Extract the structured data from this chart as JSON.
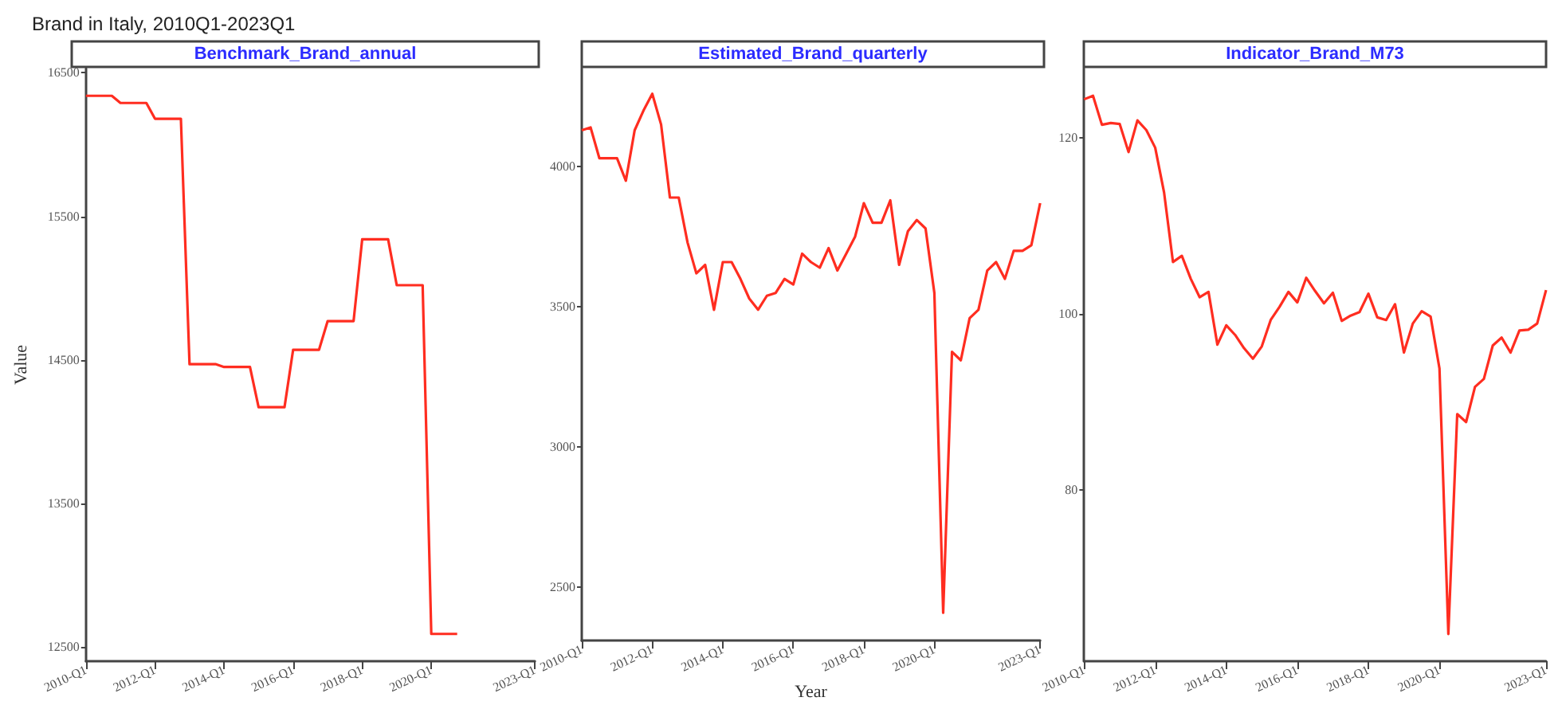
{
  "chart_data": [
    {
      "type": "line",
      "title": "Brand in Italy, 2010Q1-2023Q1",
      "subtitle": "Benchmark_Brand_annual",
      "ylabel": "Value",
      "categories": [
        "2010-Q1",
        null,
        null,
        null,
        null,
        null,
        null,
        null,
        "2012-Q1",
        null,
        null,
        null,
        null,
        null,
        null,
        null,
        "2014-Q1",
        null,
        null,
        null,
        null,
        null,
        null,
        null,
        "2016-Q1",
        null,
        null,
        null,
        null,
        null,
        null,
        null,
        "2018-Q1",
        null,
        null,
        null,
        null,
        null,
        null,
        null,
        "2020-Q1",
        null,
        null,
        null,
        null,
        null,
        null,
        null,
        null,
        null,
        null,
        null,
        "2023-Q1"
      ],
      "series": [
        {
          "color": "#ff2d20",
          "values": [
            16340,
            16340,
            16340,
            16340,
            16290,
            16290,
            16290,
            16290,
            16180,
            16180,
            16180,
            16180,
            14470,
            14470,
            14470,
            14470,
            14450,
            14450,
            14450,
            14450,
            14170,
            14170,
            14170,
            14170,
            14570,
            14570,
            14570,
            14570,
            14770,
            14770,
            14770,
            14770,
            15340,
            15340,
            15340,
            15340,
            15020,
            15020,
            15020,
            15020,
            12590,
            12590,
            12590,
            12590,
            null,
            null,
            null,
            null,
            null,
            null,
            null,
            null,
            null
          ]
        }
      ],
      "ylim": [
        12400,
        16530
      ],
      "yticks": [
        12500,
        13500,
        14500,
        15500,
        16500
      ],
      "grid": false
    },
    {
      "type": "line",
      "subtitle": "Estimated_Brand_quarterly",
      "xlabel": "Year",
      "categories": [
        "2010-Q1",
        null,
        null,
        null,
        null,
        null,
        null,
        null,
        "2012-Q1",
        null,
        null,
        null,
        null,
        null,
        null,
        null,
        "2014-Q1",
        null,
        null,
        null,
        null,
        null,
        null,
        null,
        "2016-Q1",
        null,
        null,
        null,
        null,
        null,
        null,
        null,
        "2018-Q1",
        null,
        null,
        null,
        null,
        null,
        null,
        null,
        "2020-Q1",
        null,
        null,
        null,
        null,
        null,
        null,
        null,
        null,
        null,
        null,
        null,
        "2023-Q1"
      ],
      "series": [
        {
          "color": "#ff2d20",
          "values": [
            4130,
            4140,
            4030,
            4030,
            4030,
            3950,
            4130,
            4200,
            4260,
            4150,
            3890,
            3890,
            3730,
            3620,
            3650,
            3490,
            3660,
            3660,
            3600,
            3530,
            3490,
            3540,
            3550,
            3600,
            3580,
            3690,
            3660,
            3640,
            3710,
            3630,
            3690,
            3750,
            3870,
            3800,
            3800,
            3880,
            3650,
            3770,
            3810,
            3780,
            3550,
            2410,
            3340,
            3310,
            3460,
            3490,
            3630,
            3660,
            3600,
            3700,
            3700,
            3720,
            3870
          ]
        }
      ],
      "ylim": [
        2310,
        4350
      ],
      "yticks": [
        2500,
        3000,
        3500,
        4000
      ],
      "grid": false
    },
    {
      "type": "line",
      "subtitle": "Indicator_Brand_M73",
      "categories": [
        "2010-Q1",
        null,
        null,
        null,
        null,
        null,
        null,
        null,
        "2012-Q1",
        null,
        null,
        null,
        null,
        null,
        null,
        null,
        "2014-Q1",
        null,
        null,
        null,
        null,
        null,
        null,
        null,
        "2016-Q1",
        null,
        null,
        null,
        null,
        null,
        null,
        null,
        "2018-Q1",
        null,
        null,
        null,
        null,
        null,
        null,
        null,
        "2020-Q1",
        null,
        null,
        null,
        null,
        null,
        null,
        null,
        null,
        null,
        null,
        null,
        "2023-Q1"
      ],
      "series": [
        {
          "color": "#ff2d20",
          "values": [
            124.4,
            124.8,
            121.5,
            121.7,
            121.6,
            118.4,
            122.0,
            120.9,
            118.9,
            113.8,
            105.9,
            106.6,
            104.0,
            101.9,
            102.5,
            96.5,
            98.7,
            97.6,
            96.1,
            94.9,
            96.3,
            99.3,
            100.8,
            102.5,
            101.3,
            104.1,
            102.6,
            101.2,
            102.4,
            99.2,
            99.8,
            100.2,
            102.3,
            99.6,
            99.3,
            101.1,
            95.6,
            98.9,
            100.3,
            99.7,
            93.8,
            63.6,
            88.6,
            87.7,
            91.7,
            92.6,
            96.4,
            97.3,
            95.6,
            98.1,
            98.2,
            98.9,
            102.7
          ]
        }
      ],
      "ylim": [
        60.5,
        127.9
      ],
      "yticks": [
        80,
        100,
        120
      ],
      "grid": false
    }
  ]
}
